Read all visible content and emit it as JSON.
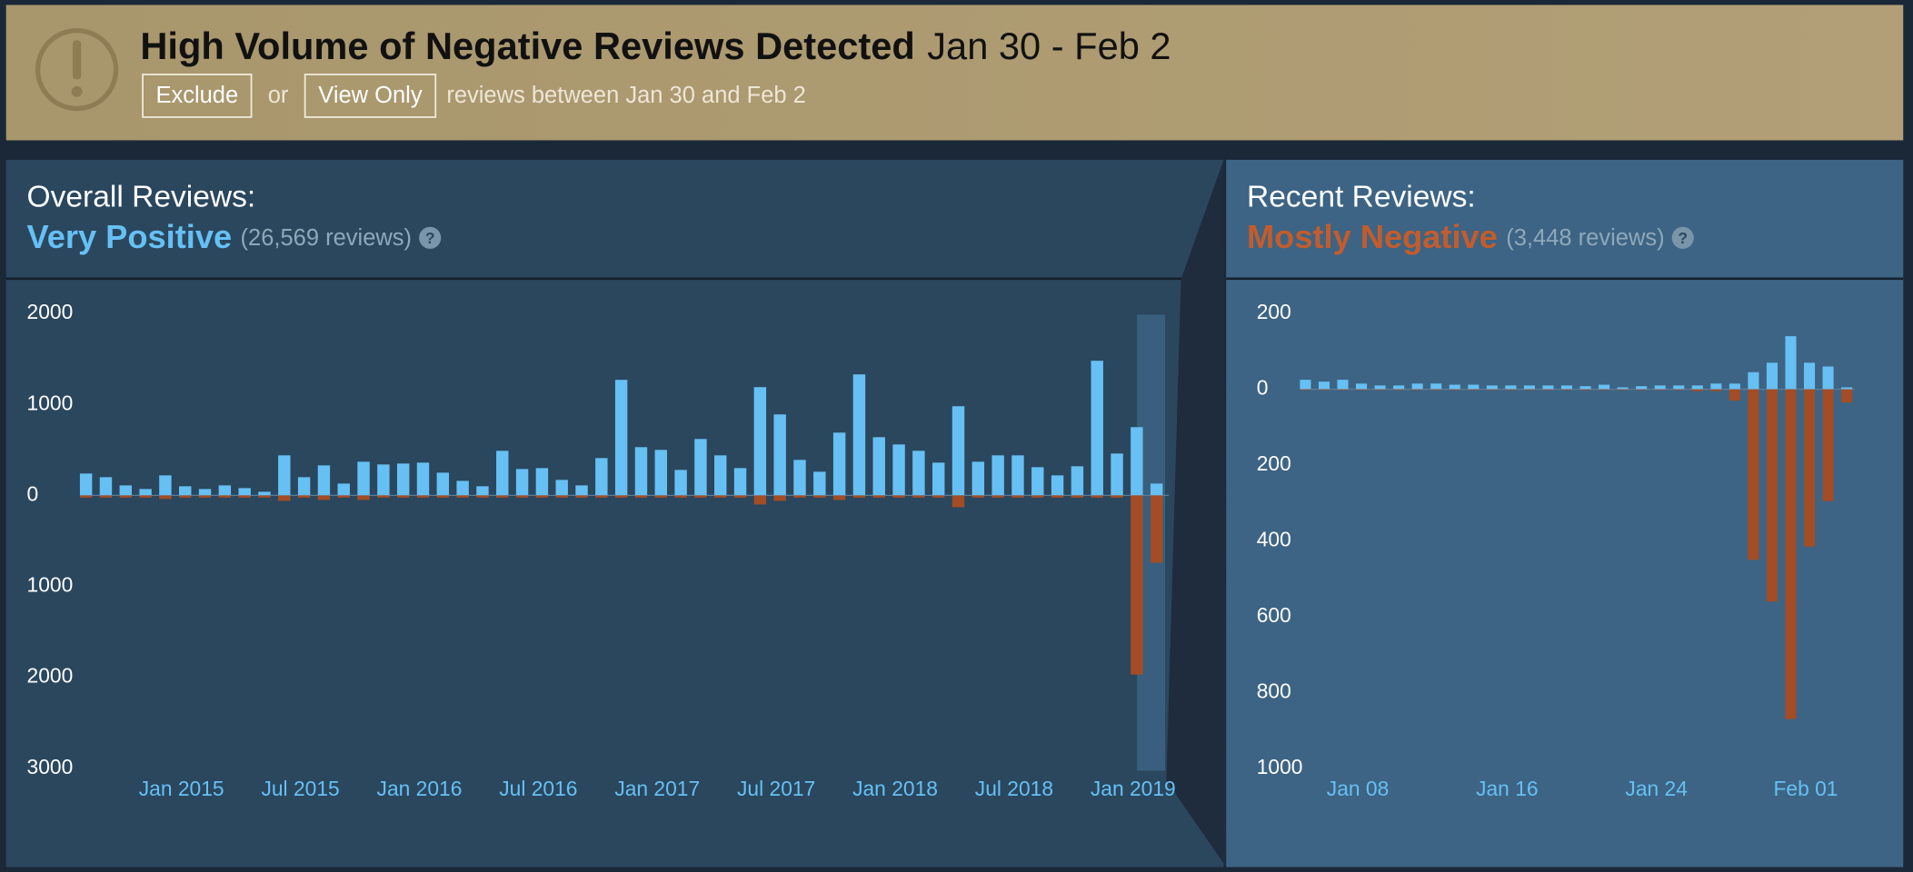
{
  "banner": {
    "title": "High Volume of Negative Reviews Detected",
    "dates": "Jan 30 - Feb 2",
    "exclude": "Exclude",
    "or": "or",
    "view_only": "View Only",
    "text": "reviews between Jan 30 and Feb 2"
  },
  "chart_data": [
    {
      "type": "bar",
      "heading": "Overall Reviews:",
      "rating": "Very Positive",
      "rating_color": "#66c0f4",
      "count": "(26,569 reviews)",
      "help": "?",
      "categories": [
        null,
        null,
        null,
        null,
        null,
        "Jan 2015",
        null,
        null,
        null,
        null,
        null,
        "Jul 2015",
        null,
        null,
        null,
        null,
        null,
        "Jan 2016",
        null,
        null,
        null,
        null,
        null,
        "Jul 2016",
        null,
        null,
        null,
        null,
        null,
        "Jan 2017",
        null,
        null,
        null,
        null,
        null,
        "Jul 2017",
        null,
        null,
        null,
        null,
        null,
        "Jan 2018",
        null,
        null,
        null,
        null,
        null,
        "Jul 2018",
        null,
        null,
        null,
        null,
        null,
        "Jan 2019",
        null
      ],
      "series": [
        {
          "color": "#66c0f4",
          "values": [
            240,
            200,
            110,
            70,
            220,
            100,
            70,
            110,
            80,
            40,
            440,
            200,
            330,
            130,
            370,
            340,
            350,
            360,
            250,
            160,
            100,
            490,
            290,
            300,
            170,
            110,
            410,
            1270,
            530,
            500,
            280,
            620,
            440,
            300,
            1190,
            890,
            390,
            260,
            690,
            1330,
            640,
            560,
            490,
            360,
            980,
            370,
            440,
            440,
            310,
            220,
            320,
            1480,
            460,
            750,
            130
          ]
        },
        {
          "color": "#a34c25",
          "values": [
            -25,
            -25,
            -25,
            -25,
            -40,
            -25,
            -25,
            -25,
            -25,
            -25,
            -60,
            -25,
            -50,
            -25,
            -50,
            -25,
            -25,
            -25,
            -25,
            -25,
            -25,
            -25,
            -25,
            -25,
            -25,
            -25,
            -25,
            -25,
            -25,
            -25,
            -25,
            -25,
            -25,
            -25,
            -100,
            -60,
            -25,
            -25,
            -50,
            -25,
            -25,
            -25,
            -25,
            -25,
            -130,
            -25,
            -25,
            -25,
            -25,
            -25,
            -25,
            -25,
            -25,
            -1970,
            -740
          ]
        }
      ],
      "ylim": [
        -3000,
        2000
      ],
      "yticks": [
        2000,
        1000,
        0,
        {
          "value": -1000,
          "label": "1000"
        },
        {
          "value": -2000,
          "label": "2000"
        },
        {
          "value": -3000,
          "label": "3000"
        }
      ]
    },
    {
      "type": "bar",
      "heading": "Recent Reviews:",
      "rating": "Mostly Negative",
      "rating_color": "#c35c2c",
      "count": "(3,448 reviews)",
      "help": "?",
      "categories": [
        null,
        null,
        null,
        "Jan 08",
        null,
        null,
        null,
        null,
        null,
        null,
        null,
        "Jan 16",
        null,
        null,
        null,
        null,
        null,
        null,
        null,
        "Jan 24",
        null,
        null,
        null,
        null,
        null,
        null,
        null,
        "Feb 01",
        null,
        null
      ],
      "series": [
        {
          "color": "#66c0f4",
          "values": [
            25,
            20,
            25,
            15,
            10,
            10,
            15,
            15,
            12,
            12,
            10,
            10,
            10,
            10,
            10,
            8,
            12,
            5,
            8,
            10,
            10,
            10,
            15,
            15,
            45,
            70,
            140,
            70,
            60,
            5
          ]
        },
        {
          "color": "#a34c25",
          "values": [
            -2,
            -2,
            -2,
            -2,
            -2,
            -2,
            -2,
            -2,
            -2,
            -2,
            -2,
            -2,
            -2,
            -2,
            -2,
            -2,
            -2,
            -2,
            -2,
            -2,
            -2,
            -5,
            -5,
            -30,
            -450,
            -560,
            -870,
            -415,
            -295,
            -35
          ]
        }
      ],
      "ylim": [
        -1000,
        200
      ],
      "yticks": [
        200,
        0,
        {
          "value": -200,
          "label": "200"
        },
        {
          "value": -400,
          "label": "400"
        },
        {
          "value": -600,
          "label": "600"
        },
        {
          "value": -800,
          "label": "800"
        },
        {
          "value": -1000,
          "label": "1000"
        }
      ]
    }
  ]
}
